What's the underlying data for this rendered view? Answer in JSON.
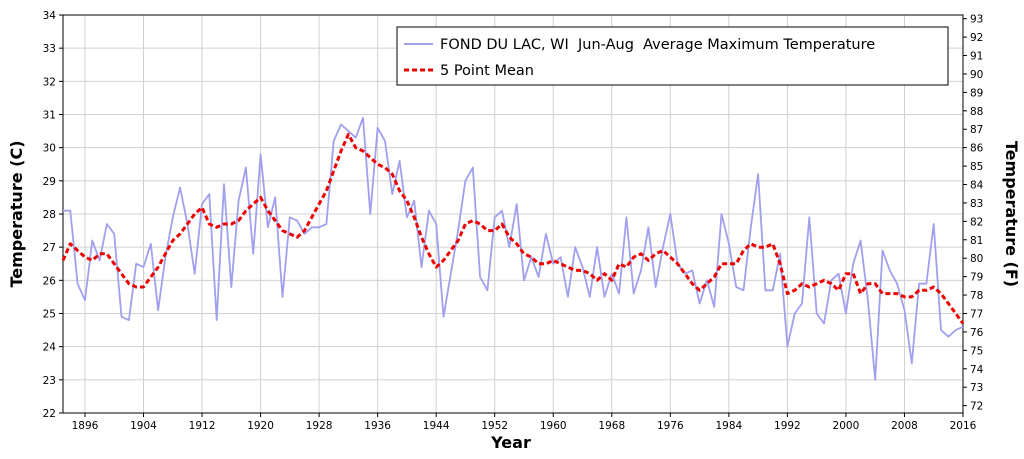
{
  "chart_data": {
    "type": "line",
    "title": "",
    "xlabel": "Year",
    "ylabel_left": "Temperature (C)",
    "ylabel_right": "Temperature (F)",
    "xlim": [
      1893,
      2016
    ],
    "ylim_left": [
      22,
      34
    ],
    "ylim_right": [
      72,
      93
    ],
    "x_ticks": [
      "1896",
      "1904",
      "1912",
      "1920",
      "1928",
      "1936",
      "1944",
      "1952",
      "1960",
      "1968",
      "1976",
      "1984",
      "1992",
      "2000",
      "2008",
      "2016"
    ],
    "y_ticks_left": [
      "22",
      "23",
      "24",
      "25",
      "26",
      "27",
      "28",
      "29",
      "30",
      "31",
      "32",
      "33",
      "34"
    ],
    "y_ticks_right": [
      "72",
      "73",
      "74",
      "75",
      "76",
      "77",
      "78",
      "79",
      "80",
      "81",
      "82",
      "83",
      "84",
      "85",
      "86",
      "87",
      "88",
      "89",
      "90",
      "91",
      "92",
      "93"
    ],
    "grid": true,
    "legend_position": "top-right",
    "colors": {
      "raw": "#a0a0ee",
      "mean": "#ee0000",
      "grid": "#d0d0d0"
    },
    "series": [
      {
        "name": "FOND DU LAC, WI  Jun-Aug  Average Maximum Temperature",
        "style": "solid",
        "x": [
          1893,
          1894,
          1895,
          1896,
          1897,
          1898,
          1899,
          1900,
          1901,
          1902,
          1903,
          1904,
          1905,
          1906,
          1907,
          1908,
          1909,
          1910,
          1911,
          1912,
          1913,
          1914,
          1915,
          1916,
          1917,
          1918,
          1919,
          1920,
          1921,
          1922,
          1923,
          1924,
          1925,
          1926,
          1927,
          1928,
          1929,
          1930,
          1931,
          1932,
          1933,
          1934,
          1935,
          1936,
          1937,
          1938,
          1939,
          1940,
          1941,
          1942,
          1943,
          1944,
          1945,
          1946,
          1947,
          1948,
          1949,
          1950,
          1951,
          1952,
          1953,
          1954,
          1955,
          1956,
          1957,
          1958,
          1959,
          1960,
          1961,
          1962,
          1963,
          1964,
          1965,
          1966,
          1967,
          1968,
          1969,
          1970,
          1971,
          1972,
          1973,
          1974,
          1975,
          1976,
          1977,
          1978,
          1979,
          1980,
          1981,
          1982,
          1983,
          1984,
          1985,
          1986,
          1987,
          1988,
          1989,
          1990,
          1991,
          1992,
          1993,
          1994,
          1995,
          1996,
          1997,
          1998,
          1999,
          2000,
          2001,
          2002,
          2003,
          2004,
          2005,
          2006,
          2007,
          2008,
          2009,
          2010,
          2011,
          2012,
          2013,
          2014,
          2015,
          2016
        ],
        "values": [
          28.1,
          28.1,
          25.9,
          25.4,
          27.2,
          26.6,
          27.7,
          27.4,
          24.9,
          24.8,
          26.5,
          26.4,
          27.1,
          25.1,
          26.7,
          27.9,
          28.8,
          27.7,
          26.2,
          28.3,
          28.6,
          24.8,
          28.9,
          25.8,
          28.4,
          29.4,
          26.8,
          29.8,
          27.6,
          28.5,
          25.5,
          27.9,
          27.8,
          27.4,
          27.6,
          27.6,
          27.7,
          30.2,
          30.7,
          30.5,
          30.3,
          30.9,
          28.0,
          30.6,
          30.2,
          28.6,
          29.6,
          27.9,
          28.4,
          26.4,
          28.1,
          27.7,
          24.9,
          26.2,
          27.5,
          29.0,
          29.4,
          26.1,
          25.7,
          27.9,
          28.1,
          27.0,
          28.3,
          26.0,
          26.7,
          26.1,
          27.4,
          26.5,
          26.7,
          25.5,
          27.0,
          26.4,
          25.5,
          27.0,
          25.5,
          26.2,
          25.6,
          27.9,
          25.6,
          26.3,
          27.6,
          25.8,
          27.0,
          28.0,
          26.5,
          26.2,
          26.3,
          25.3,
          26.0,
          25.2,
          28.0,
          27.1,
          25.8,
          25.7,
          27.6,
          29.2,
          25.7,
          25.7,
          26.8,
          24.0,
          25.0,
          25.3,
          27.9,
          25.0,
          24.7,
          26.0,
          26.2,
          25.0,
          26.5,
          27.2,
          25.4,
          23.0,
          26.9,
          26.3,
          25.9,
          25.1,
          23.5,
          25.9,
          25.9,
          27.7,
          24.5,
          24.3,
          24.5,
          24.6
        ]
      },
      {
        "name": "5 Point Mean",
        "style": "dashed",
        "x": [
          1893,
          1894,
          1895,
          1896,
          1897,
          1898,
          1899,
          1900,
          1901,
          1902,
          1903,
          1904,
          1905,
          1906,
          1907,
          1908,
          1909,
          1910,
          1911,
          1912,
          1913,
          1914,
          1915,
          1916,
          1917,
          1918,
          1919,
          1920,
          1921,
          1922,
          1923,
          1924,
          1925,
          1926,
          1927,
          1928,
          1929,
          1930,
          1931,
          1932,
          1933,
          1934,
          1935,
          1936,
          1937,
          1938,
          1939,
          1940,
          1941,
          1942,
          1943,
          1944,
          1945,
          1946,
          1947,
          1948,
          1949,
          1950,
          1951,
          1952,
          1953,
          1954,
          1955,
          1956,
          1957,
          1958,
          1959,
          1960,
          1961,
          1962,
          1963,
          1964,
          1965,
          1966,
          1967,
          1968,
          1969,
          1970,
          1971,
          1972,
          1973,
          1974,
          1975,
          1976,
          1977,
          1978,
          1979,
          1980,
          1981,
          1982,
          1983,
          1984,
          1985,
          1986,
          1987,
          1988,
          1989,
          1990,
          1991,
          1992,
          1993,
          1994,
          1995,
          1996,
          1997,
          1998,
          1999,
          2000,
          2001,
          2002,
          2003,
          2004,
          2005,
          2006,
          2007,
          2008,
          2009,
          2010,
          2011,
          2012,
          2013,
          2014,
          2015,
          2016
        ],
        "values": [
          26.6,
          27.1,
          26.9,
          26.7,
          26.6,
          26.8,
          26.8,
          26.5,
          26.2,
          25.9,
          25.8,
          25.8,
          26.1,
          26.4,
          26.8,
          27.2,
          27.4,
          27.7,
          28.0,
          28.2,
          27.7,
          27.6,
          27.7,
          27.7,
          27.8,
          28.1,
          28.3,
          28.5,
          28.1,
          27.8,
          27.5,
          27.4,
          27.3,
          27.5,
          27.9,
          28.3,
          28.7,
          29.3,
          29.9,
          30.4,
          30.0,
          29.9,
          29.7,
          29.5,
          29.4,
          29.2,
          28.7,
          28.4,
          27.9,
          27.3,
          26.8,
          26.4,
          26.6,
          26.9,
          27.2,
          27.7,
          27.8,
          27.7,
          27.5,
          27.5,
          27.7,
          27.3,
          27.1,
          26.8,
          26.7,
          26.5,
          26.5,
          26.6,
          26.5,
          26.4,
          26.3,
          26.3,
          26.2,
          26.0,
          26.2,
          26.0,
          26.5,
          26.4,
          26.7,
          26.8,
          26.6,
          26.8,
          26.9,
          26.7,
          26.5,
          26.2,
          25.9,
          25.7,
          25.9,
          26.1,
          26.5,
          26.5,
          26.5,
          26.9,
          27.1,
          27.0,
          27.0,
          27.1,
          26.5,
          25.6,
          25.7,
          25.9,
          25.8,
          25.9,
          26.0,
          25.9,
          25.7,
          26.2,
          26.2,
          25.6,
          25.9,
          25.9,
          25.6,
          25.6,
          25.6,
          25.5,
          25.5,
          25.7,
          25.7,
          25.8,
          25.6,
          25.3,
          25.0,
          24.7
        ]
      }
    ]
  }
}
